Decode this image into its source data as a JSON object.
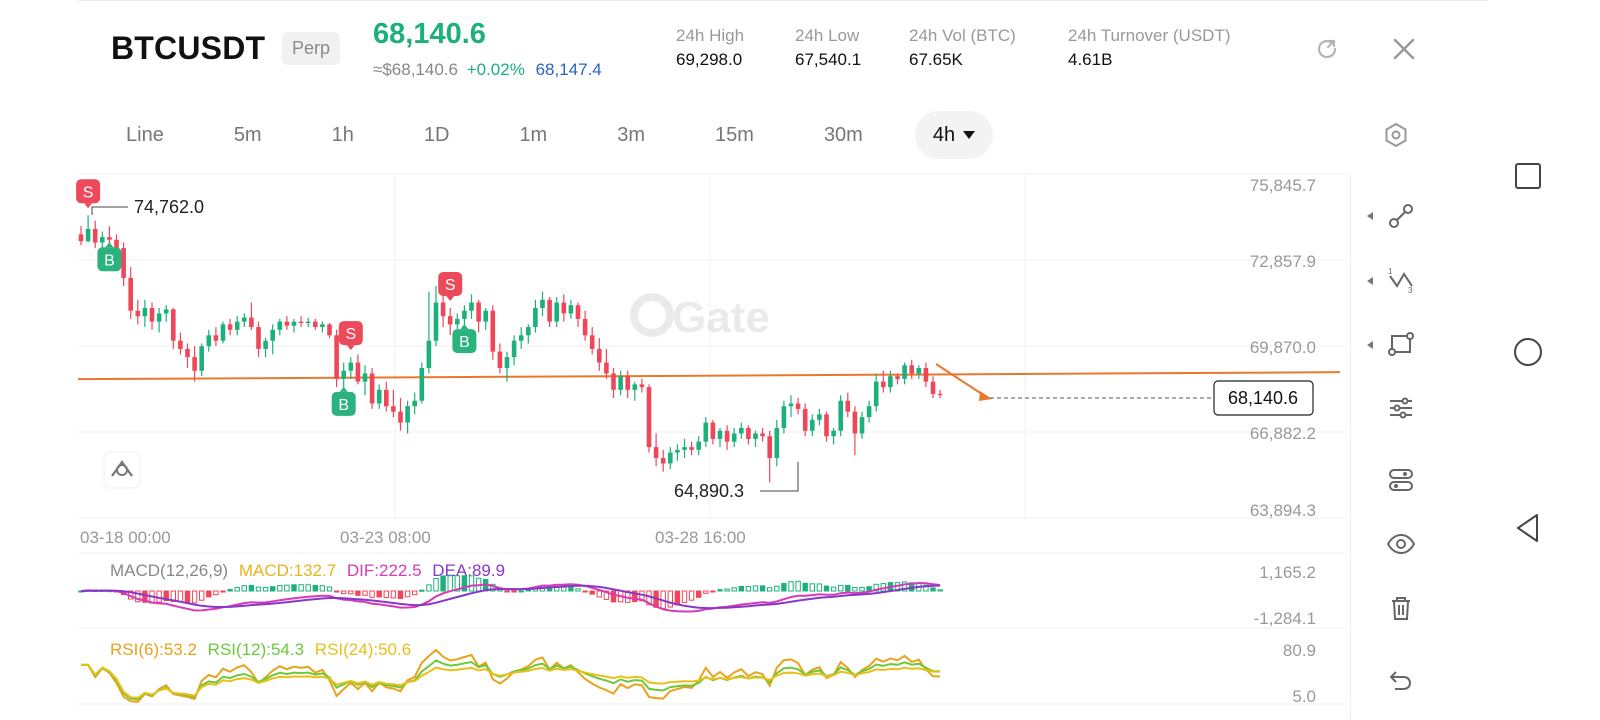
{
  "header": {
    "symbol": "BTCUSDT",
    "badge": "Perp",
    "price": "68,140.6",
    "usd_price": "≈$68,140.6",
    "change": "+0.02%",
    "mark_price": "68,147.4",
    "stats": [
      {
        "label": "24h  High",
        "value": "69,298.0"
      },
      {
        "label": "24h  Low",
        "value": "67,540.1"
      },
      {
        "label": "24h  Vol (BTC)",
        "value": "67.65K"
      },
      {
        "label": "24h  Turnover (USDT)",
        "value": "4.61B"
      }
    ],
    "icons": [
      "refresh-icon",
      "close-icon"
    ]
  },
  "tabs": [
    {
      "label": "Line"
    },
    {
      "label": "5m"
    },
    {
      "label": "1h"
    },
    {
      "label": "1D"
    },
    {
      "label": "1m"
    },
    {
      "label": "3m"
    },
    {
      "label": "15m"
    },
    {
      "label": "30m"
    },
    {
      "label": "4h",
      "active": true
    }
  ],
  "colors": {
    "up": "#1cb07a",
    "down": "#f0465a",
    "orange": "#e9782d",
    "macd_line": "#b832c8",
    "dea_line": "#b832c8"
  },
  "chart_data": {
    "type": "candlestick",
    "y_axis": [
      "75,845.7",
      "72,857.9",
      "69,870.0",
      "66,882.2",
      "63,894.3"
    ],
    "ylim": [
      63894.3,
      75845.7
    ],
    "x_axis": [
      "03-18 00:00",
      "03-23 08:00",
      "03-28 16:00"
    ],
    "high_marker": "74,762.0",
    "low_marker": "64,890.3",
    "current_price": "68,140.6",
    "horizontal_line": 68800,
    "watermark": "Gate",
    "signals": [
      {
        "type": "S",
        "index": 1
      },
      {
        "type": "B",
        "index": 4
      },
      {
        "type": "B",
        "index": 37
      },
      {
        "type": "S",
        "index": 38
      },
      {
        "type": "S",
        "index": 52
      },
      {
        "type": "B",
        "index": 54
      }
    ],
    "candles": [
      [
        74000,
        74300,
        73600,
        73750
      ],
      [
        73750,
        74700,
        73700,
        74200
      ],
      [
        74200,
        74500,
        73500,
        73700
      ],
      [
        73700,
        74100,
        73200,
        73900
      ],
      [
        73900,
        74300,
        73600,
        73800
      ],
      [
        73800,
        74000,
        73300,
        73500
      ],
      [
        73500,
        73700,
        72100,
        72400
      ],
      [
        72400,
        72800,
        70900,
        71200
      ],
      [
        71200,
        71600,
        70700,
        71000
      ],
      [
        71000,
        71600,
        70600,
        71300
      ],
      [
        71300,
        71500,
        70500,
        70800
      ],
      [
        70800,
        71300,
        70400,
        71100
      ],
      [
        71100,
        71400,
        70800,
        71250
      ],
      [
        71250,
        71300,
        69800,
        70100
      ],
      [
        70100,
        70400,
        69600,
        69800
      ],
      [
        69800,
        70000,
        69100,
        69500
      ],
      [
        69500,
        69900,
        68600,
        69000
      ],
      [
        69000,
        70000,
        68800,
        69900
      ],
      [
        69900,
        70500,
        69700,
        70300
      ],
      [
        70300,
        70600,
        69900,
        70100
      ],
      [
        70100,
        70800,
        70000,
        70700
      ],
      [
        70700,
        70900,
        70300,
        70500
      ],
      [
        70500,
        71000,
        70300,
        70800
      ],
      [
        70800,
        71100,
        70600,
        70950
      ],
      [
        70950,
        71500,
        70500,
        70600
      ],
      [
        70600,
        70800,
        69500,
        69800
      ],
      [
        69800,
        70200,
        69500,
        70100
      ],
      [
        70100,
        70700,
        69600,
        70500
      ],
      [
        70500,
        70900,
        70300,
        70800
      ],
      [
        70800,
        71000,
        70500,
        70650
      ],
      [
        70650,
        70900,
        70400,
        70800
      ],
      [
        70800,
        71000,
        70600,
        70750
      ],
      [
        70750,
        70950,
        70600,
        70800
      ],
      [
        70800,
        70900,
        70500,
        70600
      ],
      [
        70600,
        70800,
        70400,
        70700
      ],
      [
        70700,
        70750,
        70200,
        70300
      ],
      [
        70300,
        70500,
        68400,
        68700
      ],
      [
        68700,
        69300,
        68300,
        69000
      ],
      [
        69000,
        69500,
        68700,
        69300
      ],
      [
        69300,
        69600,
        68500,
        68600
      ],
      [
        68600,
        69200,
        68100,
        68900
      ],
      [
        68900,
        69100,
        67600,
        67800
      ],
      [
        67800,
        68500,
        67600,
        68300
      ],
      [
        68300,
        68600,
        67500,
        67700
      ],
      [
        67700,
        68300,
        67300,
        67500
      ],
      [
        67500,
        68000,
        66800,
        67100
      ],
      [
        67100,
        67900,
        66700,
        67700
      ],
      [
        67700,
        68200,
        67400,
        67900
      ],
      [
        67900,
        69300,
        67800,
        69100
      ],
      [
        69100,
        71900,
        68900,
        70100
      ],
      [
        70100,
        72100,
        69900,
        71500
      ],
      [
        71500,
        71800,
        70600,
        71000
      ],
      [
        71000,
        71300,
        70300,
        70700
      ],
      [
        70700,
        71100,
        70400,
        70900
      ],
      [
        70900,
        71400,
        70600,
        71200
      ],
      [
        71200,
        71800,
        70900,
        71500
      ],
      [
        71500,
        71600,
        70400,
        70800
      ],
      [
        70800,
        71300,
        70500,
        71200
      ],
      [
        71200,
        71400,
        69400,
        69700
      ],
      [
        69700,
        70000,
        68900,
        69100
      ],
      [
        69100,
        69700,
        68600,
        69500
      ],
      [
        69500,
        70300,
        69200,
        70100
      ],
      [
        70100,
        70600,
        69800,
        70300
      ],
      [
        70300,
        70700,
        70000,
        70600
      ],
      [
        70600,
        71600,
        70400,
        71300
      ],
      [
        71300,
        71900,
        71000,
        71600
      ],
      [
        71600,
        71700,
        70600,
        70800
      ],
      [
        70800,
        71700,
        70600,
        71500
      ],
      [
        71500,
        71800,
        70800,
        71100
      ],
      [
        71100,
        71600,
        70900,
        71400
      ],
      [
        71400,
        71500,
        70600,
        70900
      ],
      [
        70900,
        71200,
        70100,
        70300
      ],
      [
        70300,
        70600,
        69600,
        69800
      ],
      [
        69800,
        70200,
        69000,
        69300
      ],
      [
        69300,
        69800,
        68700,
        68900
      ],
      [
        68900,
        69100,
        68000,
        68300
      ],
      [
        68300,
        69000,
        68100,
        68800
      ],
      [
        68800,
        69000,
        68000,
        68300
      ],
      [
        68300,
        68600,
        67900,
        68500
      ],
      [
        68500,
        68700,
        68200,
        68400
      ],
      [
        68400,
        68500,
        66000,
        66200
      ],
      [
        66200,
        66700,
        65500,
        65800
      ],
      [
        65800,
        66100,
        65300,
        65600
      ],
      [
        65600,
        66200,
        65400,
        66000
      ],
      [
        66000,
        66300,
        65700,
        66100
      ],
      [
        66100,
        66500,
        65800,
        66200
      ],
      [
        66200,
        66400,
        65900,
        66100
      ],
      [
        66100,
        66600,
        65900,
        66400
      ],
      [
        66400,
        67300,
        66200,
        67100
      ],
      [
        67100,
        67200,
        66300,
        66500
      ],
      [
        66500,
        66900,
        66200,
        66800
      ],
      [
        66800,
        67000,
        66100,
        66400
      ],
      [
        66400,
        66900,
        66200,
        66700
      ],
      [
        66700,
        67100,
        66500,
        66900
      ],
      [
        66900,
        67000,
        66300,
        66500
      ],
      [
        66500,
        66800,
        66200,
        66700
      ],
      [
        66700,
        66900,
        66400,
        66600
      ],
      [
        66600,
        66800,
        64900,
        65800
      ],
      [
        65800,
        67200,
        65500,
        66900
      ],
      [
        66900,
        67900,
        66700,
        67700
      ],
      [
        67700,
        68100,
        67300,
        67800
      ],
      [
        67800,
        68000,
        67400,
        67600
      ],
      [
        67600,
        67800,
        66600,
        66800
      ],
      [
        66800,
        67400,
        66600,
        67200
      ],
      [
        67200,
        67600,
        67000,
        67400
      ],
      [
        67400,
        67500,
        66400,
        66600
      ],
      [
        66600,
        66900,
        66300,
        66800
      ],
      [
        66800,
        68100,
        66600,
        67900
      ],
      [
        67900,
        68200,
        67300,
        67500
      ],
      [
        67500,
        67700,
        65900,
        66700
      ],
      [
        66700,
        67500,
        66500,
        67300
      ],
      [
        67300,
        67900,
        67100,
        67700
      ],
      [
        67700,
        68900,
        67500,
        68600
      ],
      [
        68600,
        69000,
        68200,
        68400
      ],
      [
        68400,
        69000,
        68200,
        68800
      ],
      [
        68800,
        68900,
        68500,
        68700
      ],
      [
        68700,
        69300,
        68500,
        69200
      ],
      [
        69200,
        69400,
        68700,
        68900
      ],
      [
        68900,
        69200,
        68700,
        69100
      ],
      [
        69100,
        69300,
        68400,
        68600
      ],
      [
        68600,
        68800,
        68000,
        68150
      ],
      [
        68150,
        68300,
        68000,
        68140.6
      ]
    ],
    "macd": {
      "label": "MACD(12,26,9)",
      "macd_text": "MACD:132.7",
      "dif_text": "DIF:222.5",
      "dea_text": "DEA:89.9",
      "axis": [
        "1,165.2",
        "-1,284.1"
      ]
    },
    "rsi": {
      "rsi6": "RSI(6):53.2",
      "rsi12": "RSI(12):54.3",
      "rsi24": "RSI(24):50.6",
      "axis": [
        "80.9",
        "5.0"
      ]
    }
  },
  "toolbar": {
    "tools": [
      "trend-line-tool-icon",
      "fib-tool-icon",
      "shape-tool-icon",
      "settings-sliders-icon",
      "layers-icon",
      "eye-icon",
      "trash-icon",
      "undo-icon"
    ]
  },
  "nav": [
    "square-icon",
    "circle-icon",
    "back-triangle-icon"
  ]
}
